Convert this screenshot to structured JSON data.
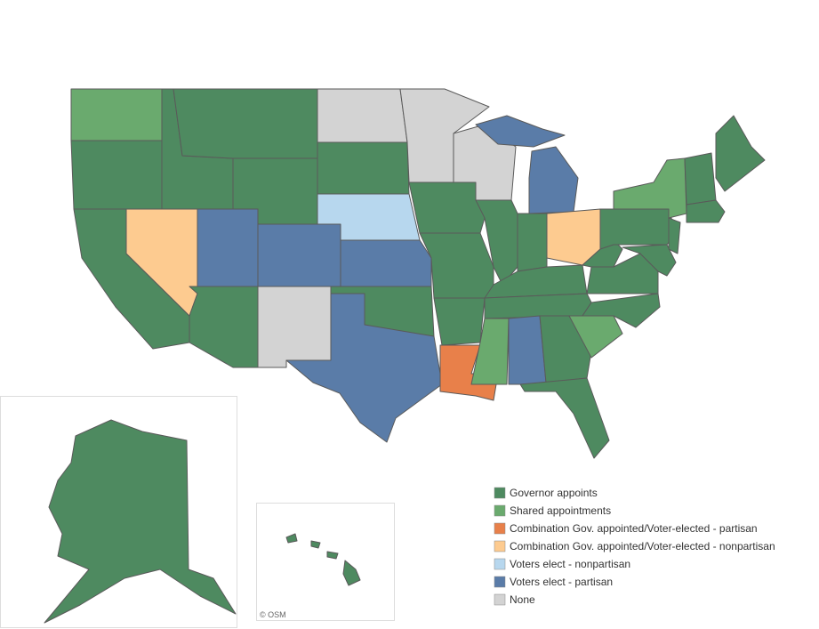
{
  "legend": [
    {
      "label": "Governor appoints",
      "color": "#4e8a60"
    },
    {
      "label": "Shared appointments",
      "color": "#6aaa6e"
    },
    {
      "label": "Combination Gov. appointed/Voter-elected - partisan",
      "color": "#e8804a"
    },
    {
      "label": "Combination Gov. appointed/Voter-elected - nonpartisan",
      "color": "#fdcb90"
    },
    {
      "label": "Voters elect - nonpartisan",
      "color": "#b7d7ee"
    },
    {
      "label": "Voters elect - partisan",
      "color": "#5a7ca8"
    },
    {
      "label": "None",
      "color": "#d3d3d3"
    }
  ],
  "attribution": "© OSM"
}
